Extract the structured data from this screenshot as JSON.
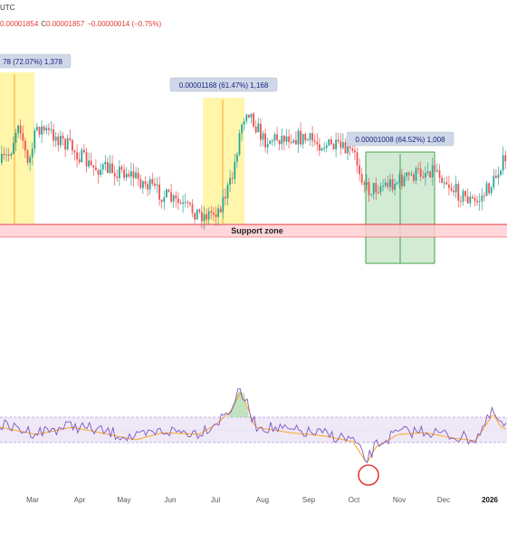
{
  "header": {
    "timezone": "UTC",
    "close_value": "0.00001854",
    "close_label": "C",
    "close_price": "0.00001857",
    "change": "−0.00000014 (−0.75%)"
  },
  "chart_data": {
    "type": "candlestick",
    "x_labels": [
      "Mar",
      "Apr",
      "May",
      "Jun",
      "Jul",
      "Aug",
      "Sep",
      "Oct",
      "Nov",
      "Dec",
      "2026"
    ],
    "support_zone_label": "Support zone",
    "measurements": [
      {
        "label": "78 (72.07%) 1,378",
        "style": "yellow"
      },
      {
        "label": "0.00001168 (61.47%) 1,168",
        "style": "yellow"
      },
      {
        "label": "0.00001008 (64.52%) 1,008",
        "style": "green"
      }
    ],
    "rsi": {
      "upper": 70,
      "lower": 30
    }
  },
  "colors": {
    "up": "#26a69a",
    "down": "#ef5350",
    "yellow_fill": "#fff59d",
    "green_fill": "#c8e6c9",
    "support_fill": "#ffcdd2",
    "support_line": "#e53935",
    "rsi_band": "#ede7f6",
    "rsi_line": "#7e57c2",
    "rsi_ma": "#f9a825"
  }
}
